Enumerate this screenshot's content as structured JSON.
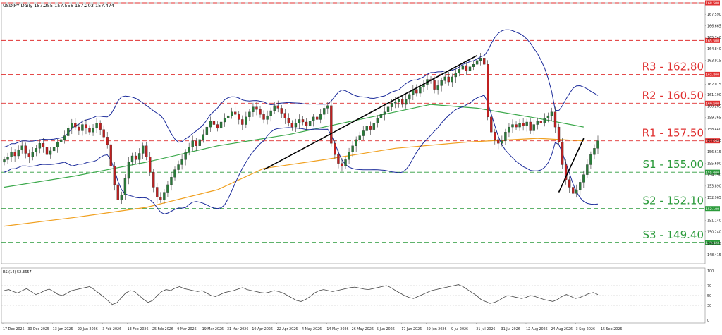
{
  "chart_data": {
    "type": "candlestick",
    "symbol_header": "USDJPY,Daily  157.255 157.556 157.203 157.474",
    "price_axis": {
      "min": 147.7,
      "max": 168.5,
      "ticks": [
        "167.590",
        "166.665",
        "165.740",
        "164.840",
        "163.915",
        "162.015",
        "161.190",
        "160.265",
        "159.365",
        "158.440",
        "157.540",
        "156.615",
        "155.690",
        "154.790",
        "153.890",
        "152.965",
        "151.140",
        "150.240",
        "149.315",
        "148.415"
      ]
    },
    "date_axis": {
      "ticks": [
        "17 Dec 2025",
        "30 Dec 2025",
        "13 Jan 2026",
        "22 Jan 2026",
        "3 Feb 2026",
        "13 Feb 2026",
        "25 Feb 2026",
        "9 Mar 2026",
        "19 Mar 2026",
        "31 Mar 2026",
        "10 Apr 2026",
        "22 Apr 2026",
        "4 May 2026",
        "14 May 2026",
        "26 May 2026",
        "5 Jun 2026",
        "17 Jun 2026",
        "29 Jun 2026",
        "9 Jul 2026",
        "21 Jul 2026",
        "31 Jul 2026",
        "12 Aug 2026",
        "24 Aug 2026",
        "3 Sep 2026",
        "15 Sep 2026"
      ],
      "bars": 200
    },
    "levels": [
      {
        "price": 168.5,
        "tag": "168.500",
        "label": "",
        "color": "#e03030",
        "style": "dashed"
      },
      {
        "price": 165.5,
        "tag": "165.500",
        "label": "",
        "color": "#e03030",
        "style": "dashed"
      },
      {
        "price": 162.8,
        "tag": "162.800",
        "label": "R3 - 162.80",
        "color": "#e03030",
        "style": "dashed"
      },
      {
        "price": 160.5,
        "tag": "160.500",
        "label": "R2 - 160.50",
        "color": "#e03030",
        "style": "dashed"
      },
      {
        "price": 157.5,
        "tag": "157.500",
        "label": "R1 - 157.50",
        "color": "#e03030",
        "style": "dashed"
      },
      {
        "price": 155.0,
        "tag": "155.000",
        "label": "S1 - 155.00",
        "color": "#2a9a3a",
        "style": "dashed"
      },
      {
        "price": 152.1,
        "tag": "152.100",
        "label": "S2 - 152.10",
        "color": "#2a9a3a",
        "style": "dashed"
      },
      {
        "price": 149.4,
        "tag": "149.400",
        "label": "S3 - 149.40",
        "color": "#2a9a3a",
        "style": "dashed"
      }
    ],
    "close_series": [
      156.0,
      156.2,
      156.6,
      156.3,
      156.8,
      157.1,
      156.5,
      156.2,
      156.6,
      156.9,
      157.3,
      157.0,
      156.4,
      156.7,
      157.0,
      157.4,
      157.6,
      157.9,
      158.5,
      158.9,
      158.6,
      158.3,
      158.8,
      158.5,
      158.2,
      158.5,
      158.9,
      158.4,
      157.8,
      157.2,
      155.5,
      154.0,
      152.8,
      153.2,
      154.5,
      155.8,
      156.3,
      156.0,
      156.5,
      157.1,
      156.2,
      155.0,
      153.8,
      153.0,
      152.8,
      153.4,
      154.0,
      154.6,
      155.2,
      155.6,
      156.0,
      156.6,
      157.0,
      157.5,
      157.1,
      157.6,
      158.0,
      158.6,
      159.1,
      158.8,
      158.5,
      159.0,
      159.3,
      159.5,
      159.8,
      159.6,
      159.2,
      158.8,
      159.4,
      159.8,
      160.2,
      160.0,
      159.6,
      159.2,
      159.5,
      159.9,
      160.3,
      160.1,
      159.7,
      159.3,
      158.9,
      158.6,
      158.9,
      159.2,
      159.0,
      158.7,
      159.1,
      159.4,
      159.2,
      159.6,
      160.1,
      160.3,
      157.3,
      156.4,
      155.7,
      155.5,
      156.0,
      156.6,
      157.1,
      157.6,
      157.9,
      158.3,
      158.7,
      158.4,
      158.9,
      159.3,
      159.6,
      159.8,
      160.2,
      160.5,
      160.6,
      160.8,
      160.4,
      160.8,
      161.2,
      161.6,
      161.3,
      161.8,
      162.0,
      162.4,
      162.3,
      161.6,
      161.9,
      162.3,
      162.6,
      162.2,
      162.6,
      162.9,
      163.2,
      163.5,
      163.1,
      163.4,
      163.6,
      163.9,
      164.1,
      163.6,
      159.4,
      158.2,
      157.6,
      157.3,
      157.5,
      158.2,
      158.6,
      158.8,
      158.6,
      158.9,
      158.7,
      159.0,
      158.3,
      158.8,
      159.1,
      158.9,
      159.3,
      159.5,
      159.8,
      158.6,
      157.4,
      155.6,
      154.4,
      153.8,
      153.3,
      153.6,
      154.2,
      154.8,
      155.6,
      156.4,
      156.9,
      157.5
    ],
    "trendlines": [
      {
        "name": "uptrend-1",
        "from": {
          "bar": 73,
          "price": 155.2
        },
        "to": {
          "bar": 133,
          "price": 164.3
        }
      },
      {
        "name": "uptrend-2",
        "from": {
          "bar": 156,
          "price": 153.4
        },
        "to": {
          "bar": 163,
          "price": 157.7
        }
      }
    ],
    "moving_averages": [
      {
        "name": "ma-orange",
        "color": "#f0a020",
        "points": [
          [
            0,
            150.7
          ],
          [
            20,
            151.4
          ],
          [
            40,
            152.2
          ],
          [
            60,
            153.6
          ],
          [
            73,
            155.3
          ],
          [
            90,
            156.0
          ],
          [
            110,
            156.9
          ],
          [
            130,
            157.4
          ],
          [
            150,
            157.7
          ],
          [
            163,
            157.5
          ]
        ]
      },
      {
        "name": "ma-green",
        "color": "#3aa84a",
        "points": [
          [
            0,
            153.8
          ],
          [
            20,
            154.7
          ],
          [
            40,
            155.8
          ],
          [
            60,
            157.1
          ],
          [
            80,
            158.0
          ],
          [
            100,
            159.2
          ],
          [
            120,
            160.4
          ],
          [
            133,
            160.1
          ],
          [
            150,
            159.3
          ],
          [
            163,
            158.6
          ]
        ]
      }
    ],
    "rsi": {
      "label": "RSI(14) 52.3657",
      "levels": [
        70,
        50,
        30
      ],
      "ticks": [
        "100",
        "70",
        "50",
        "30",
        "0"
      ],
      "values": [
        60,
        62,
        58,
        55,
        60,
        64,
        58,
        52,
        55,
        60,
        63,
        58,
        52,
        50,
        55,
        60,
        62,
        64,
        66,
        68,
        62,
        55,
        48,
        40,
        32,
        35,
        45,
        55,
        60,
        58,
        50,
        42,
        36,
        40,
        50,
        58,
        62,
        60,
        65,
        68,
        64,
        62,
        60,
        58,
        60,
        55,
        50,
        48,
        52,
        56,
        58,
        60,
        63,
        66,
        62,
        60,
        58,
        56,
        55,
        57,
        60,
        58,
        55,
        50,
        45,
        40,
        38,
        42,
        48,
        55,
        60,
        62,
        60,
        58,
        60,
        62,
        64,
        66,
        67,
        65,
        63,
        62,
        64,
        66,
        68,
        70,
        66,
        60,
        55,
        50,
        46,
        44,
        48,
        52,
        56,
        60,
        62,
        64,
        66,
        68,
        70,
        72,
        68,
        62,
        56,
        50,
        42,
        38,
        34,
        36,
        40,
        46,
        50,
        48,
        46,
        44,
        46,
        50,
        48,
        45,
        42,
        40,
        38,
        42,
        48,
        52,
        48,
        44,
        46,
        50,
        54,
        56,
        52
      ]
    }
  },
  "colors": {
    "bull": "#2a7a3a",
    "bear": "#c02020",
    "bands": "#1a2a9a",
    "trend": "#000000"
  }
}
